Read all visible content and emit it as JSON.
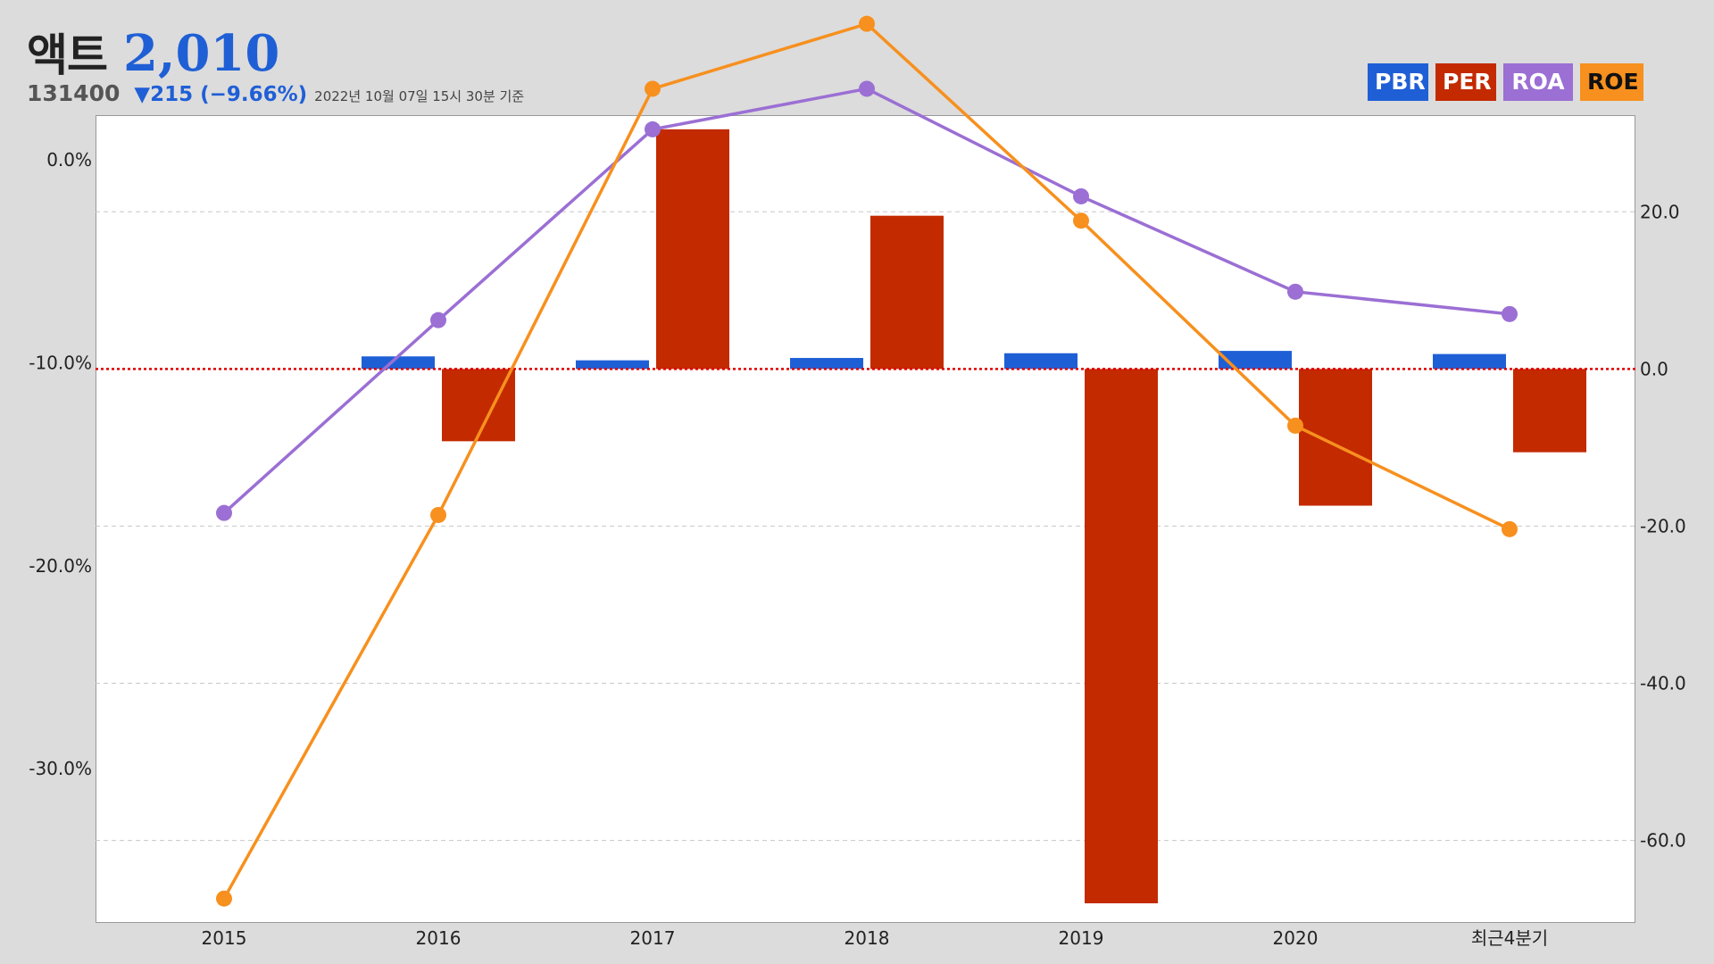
{
  "header": {
    "name": "액트",
    "price": "2,010",
    "code": "131400",
    "change": "▼215 (−9.66%)",
    "as_of": "2022년 10월 07일 15시 30분 기준"
  },
  "legend": [
    {
      "label": "PBR",
      "color": "#1f5fd6"
    },
    {
      "label": "PER",
      "color": "#c32a00"
    },
    {
      "label": "ROA",
      "color": "#9b6fd4"
    },
    {
      "label": "ROE",
      "color": "#f7901e"
    }
  ],
  "chart_data": {
    "type": "bar",
    "categories": [
      "2015",
      "2016",
      "2017",
      "2018",
      "2019",
      "2020",
      "최근4분기"
    ],
    "left_axis": {
      "ticks": [
        "0.0%",
        "-10.0%",
        "-20.0%",
        "-30.0%"
      ],
      "range": [
        -37.6,
        2.2
      ]
    },
    "right_axis": {
      "ticks": [
        "20.0",
        "0.0",
        "-20.0",
        "-40.0",
        "-60.0"
      ],
      "range": [
        -70.5,
        32.3
      ]
    },
    "series": [
      {
        "name": "PBR",
        "type": "bar",
        "axis": "right",
        "values": [
          null,
          1.6,
          1.1,
          1.4,
          2.0,
          2.3,
          1.9
        ]
      },
      {
        "name": "PER",
        "type": "bar",
        "axis": "right",
        "values": [
          null,
          -9.2,
          30.5,
          19.5,
          -68.0,
          -17.4,
          -10.6
        ]
      },
      {
        "name": "ROA",
        "type": "line",
        "axis": "left",
        "values": [
          -17.4,
          -7.9,
          1.5,
          3.5,
          -1.8,
          -6.5,
          -7.6
        ]
      },
      {
        "name": "ROE",
        "type": "line",
        "axis": "left",
        "values": [
          -36.4,
          -17.5,
          3.5,
          6.7,
          -3.0,
          -13.1,
          -18.2
        ]
      }
    ],
    "reference_line": {
      "axis": "right",
      "value": 0,
      "style": "dotted",
      "color": "#e00000"
    },
    "grid": "dashed horizontal"
  }
}
